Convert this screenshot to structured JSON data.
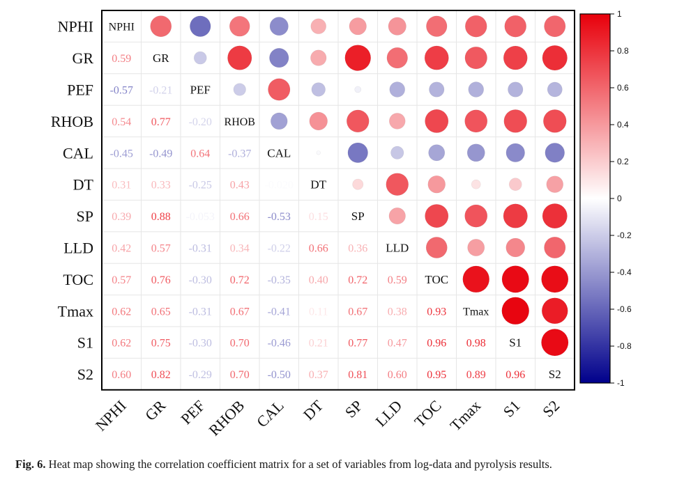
{
  "chart_data": {
    "type": "heatmap",
    "variables": [
      "NPHI",
      "GR",
      "PEF",
      "RHOB",
      "CAL",
      "DT",
      "SP",
      "LLD",
      "TOC",
      "Tmax",
      "S1",
      "S2"
    ],
    "matrix": [
      [
        1,
        0.59,
        -0.57,
        0.54,
        -0.45,
        0.31,
        0.39,
        0.42,
        0.57,
        0.62,
        0.62,
        0.6
      ],
      [
        0.59,
        1,
        -0.21,
        0.77,
        -0.49,
        0.33,
        0.88,
        0.57,
        0.76,
        0.65,
        0.75,
        0.82
      ],
      [
        -0.57,
        -0.21,
        1,
        -0.2,
        0.64,
        -0.25,
        -0.053,
        -0.31,
        -0.3,
        -0.31,
        -0.3,
        -0.29
      ],
      [
        0.54,
        0.77,
        -0.2,
        1,
        -0.37,
        0.43,
        0.66,
        0.34,
        0.72,
        0.67,
        0.7,
        0.7
      ],
      [
        -0.45,
        -0.49,
        0.64,
        -0.37,
        1,
        -0.02,
        -0.53,
        -0.22,
        -0.35,
        -0.41,
        -0.46,
        -0.5
      ],
      [
        0.31,
        0.33,
        -0.25,
        0.43,
        -0.02,
        1,
        0.15,
        0.66,
        0.4,
        0.11,
        0.21,
        0.37
      ],
      [
        0.39,
        0.88,
        -0.053,
        0.66,
        -0.53,
        0.15,
        1,
        0.36,
        0.72,
        0.67,
        0.77,
        0.81
      ],
      [
        0.42,
        0.57,
        -0.31,
        0.34,
        -0.22,
        0.66,
        0.36,
        1,
        0.59,
        0.38,
        0.47,
        0.6
      ],
      [
        0.57,
        0.76,
        -0.3,
        0.72,
        -0.35,
        0.4,
        0.72,
        0.59,
        1,
        0.93,
        0.96,
        0.95
      ],
      [
        0.62,
        0.65,
        -0.31,
        0.67,
        -0.41,
        0.11,
        0.67,
        0.38,
        0.93,
        1,
        0.98,
        0.89
      ],
      [
        0.62,
        0.75,
        -0.3,
        0.7,
        -0.46,
        0.21,
        0.77,
        0.47,
        0.96,
        0.98,
        1,
        0.96
      ],
      [
        0.6,
        0.82,
        -0.29,
        0.7,
        -0.5,
        0.37,
        0.81,
        0.6,
        0.95,
        0.89,
        0.96,
        1
      ]
    ],
    "lower_labels": [
      [
        "0.59"
      ],
      [
        "-0.57",
        "-0.21"
      ],
      [
        "0.54",
        "0.77",
        "-0.20"
      ],
      [
        "-0.45",
        "-0.49",
        "0.64",
        "-0.37"
      ],
      [
        "0.31",
        "0.33",
        "-0.25",
        "0.43",
        "-0.020"
      ],
      [
        "0.39",
        "0.88",
        "-0.053",
        "0.66",
        "-0.53",
        "0.15"
      ],
      [
        "0.42",
        "0.57",
        "-0.31",
        "0.34",
        "-0.22",
        "0.66",
        "0.36"
      ],
      [
        "0.57",
        "0.76",
        "-0.30",
        "0.72",
        "-0.35",
        "0.40",
        "0.72",
        "0.59"
      ],
      [
        "0.62",
        "0.65",
        "-0.31",
        "0.67",
        "-0.41",
        "0.11",
        "0.67",
        "0.38",
        "0.93"
      ],
      [
        "0.62",
        "0.75",
        "-0.30",
        "0.70",
        "-0.46",
        "0.21",
        "0.77",
        "0.47",
        "0.96",
        "0.98"
      ],
      [
        "0.60",
        "0.82",
        "-0.29",
        "0.70",
        "-0.50",
        "0.37",
        "0.81",
        "0.60",
        "0.95",
        "0.89",
        "0.96"
      ]
    ],
    "upper_encoding": "circle size and color",
    "lower_encoding": "numeric text colored by value",
    "colorbar": {
      "range": [
        -1,
        1
      ],
      "ticks": [
        "1",
        "0.8",
        "0.6",
        "0.4",
        "0.2",
        "0",
        "-0.2",
        "-0.4",
        "-0.6",
        "-0.8",
        "-1"
      ],
      "tick_values": [
        1,
        0.8,
        0.6,
        0.4,
        0.2,
        0,
        -0.2,
        -0.4,
        -0.6,
        -0.8,
        -1
      ],
      "color_negative": "#00008b",
      "color_zero": "#ffffff",
      "color_positive": "#e8000b"
    }
  },
  "caption": {
    "label": "Fig. 6.",
    "text": "Heat map showing the correlation coefficient matrix for a set of variables from log-data and pyrolysis results."
  }
}
